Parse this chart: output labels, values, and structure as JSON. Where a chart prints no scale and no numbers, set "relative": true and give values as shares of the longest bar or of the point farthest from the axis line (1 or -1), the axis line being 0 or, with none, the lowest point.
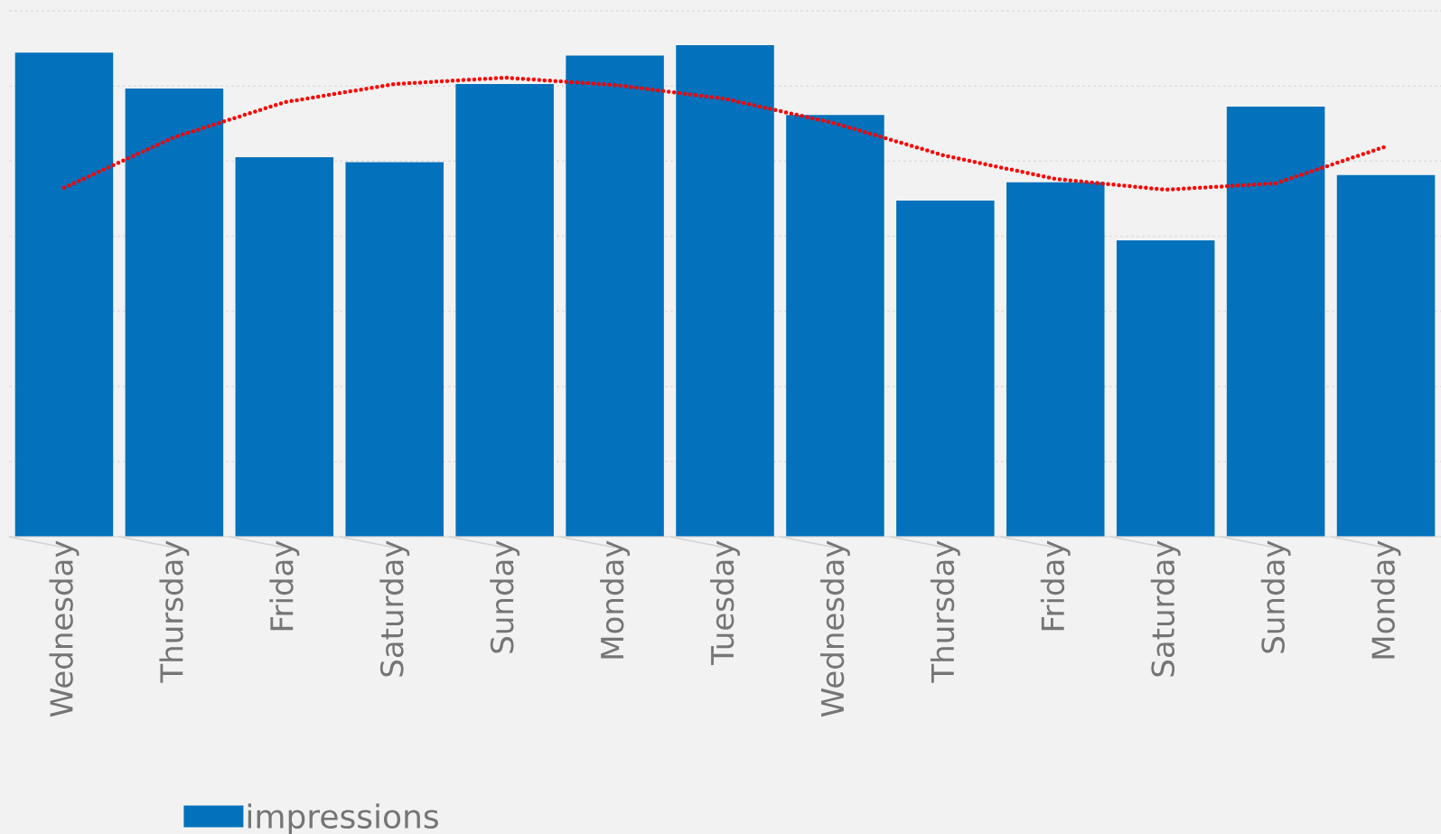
{
  "chart_data": {
    "type": "bar",
    "relative": true,
    "grid": "y",
    "legend": "bottom",
    "categories": [
      "Wednesday",
      "Thursday",
      "Friday",
      "Saturday",
      "Sunday",
      "Monday",
      "Tuesday",
      "Wednesday",
      "Thursday",
      "Friday",
      "Saturday",
      "Sunday",
      "Monday"
    ],
    "series": [
      {
        "name": "impressions",
        "color": "#0371bb",
        "values": [
          0.985,
          0.912,
          0.772,
          0.762,
          0.921,
          0.979,
          1,
          0.858,
          0.684,
          0.721,
          0.603,
          0.875,
          0.736
        ]
      },
      {
        "type": "line",
        "color": "#ff0000",
        "line_style": "dotted",
        "values": [
          0.71,
          0.813,
          0.884,
          0.921,
          0.934,
          0.919,
          0.891,
          0.841,
          0.775,
          0.728,
          0.706,
          0.719,
          0.794
        ]
      }
    ]
  }
}
